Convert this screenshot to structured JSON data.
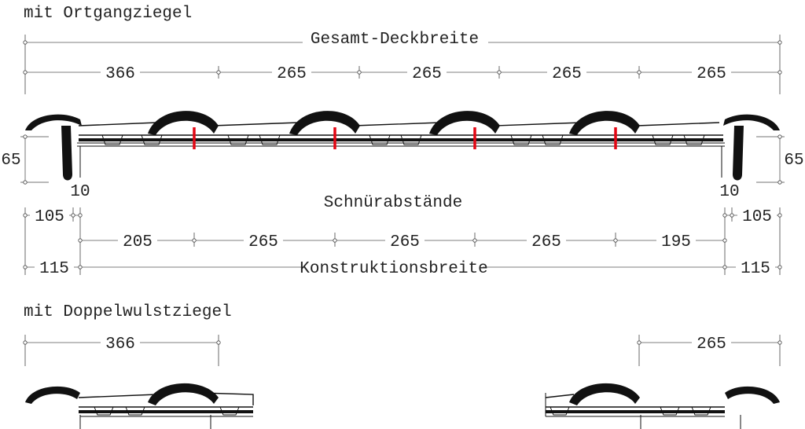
{
  "section1": {
    "heading": "mit Ortgangziegel",
    "overall_label": "Gesamt-Deckbreite",
    "cover_widths": [
      "366",
      "265",
      "265",
      "265",
      "265"
    ],
    "side_height_left": "65",
    "side_height_right": "65",
    "offset_left": "10",
    "offset_right": "10",
    "batten_label": "Schnürabstände",
    "edge_left": "105",
    "edge_right": "105",
    "batten_spacings": [
      "205",
      "265",
      "265",
      "265",
      "195"
    ],
    "construction_left": "115",
    "construction_right": "115",
    "construction_label": "Konstruktionsbreite",
    "marker_color": "#e30613"
  },
  "section2": {
    "heading": "mit Doppelwulstziegel",
    "left_width": "366",
    "right_width": "265"
  }
}
